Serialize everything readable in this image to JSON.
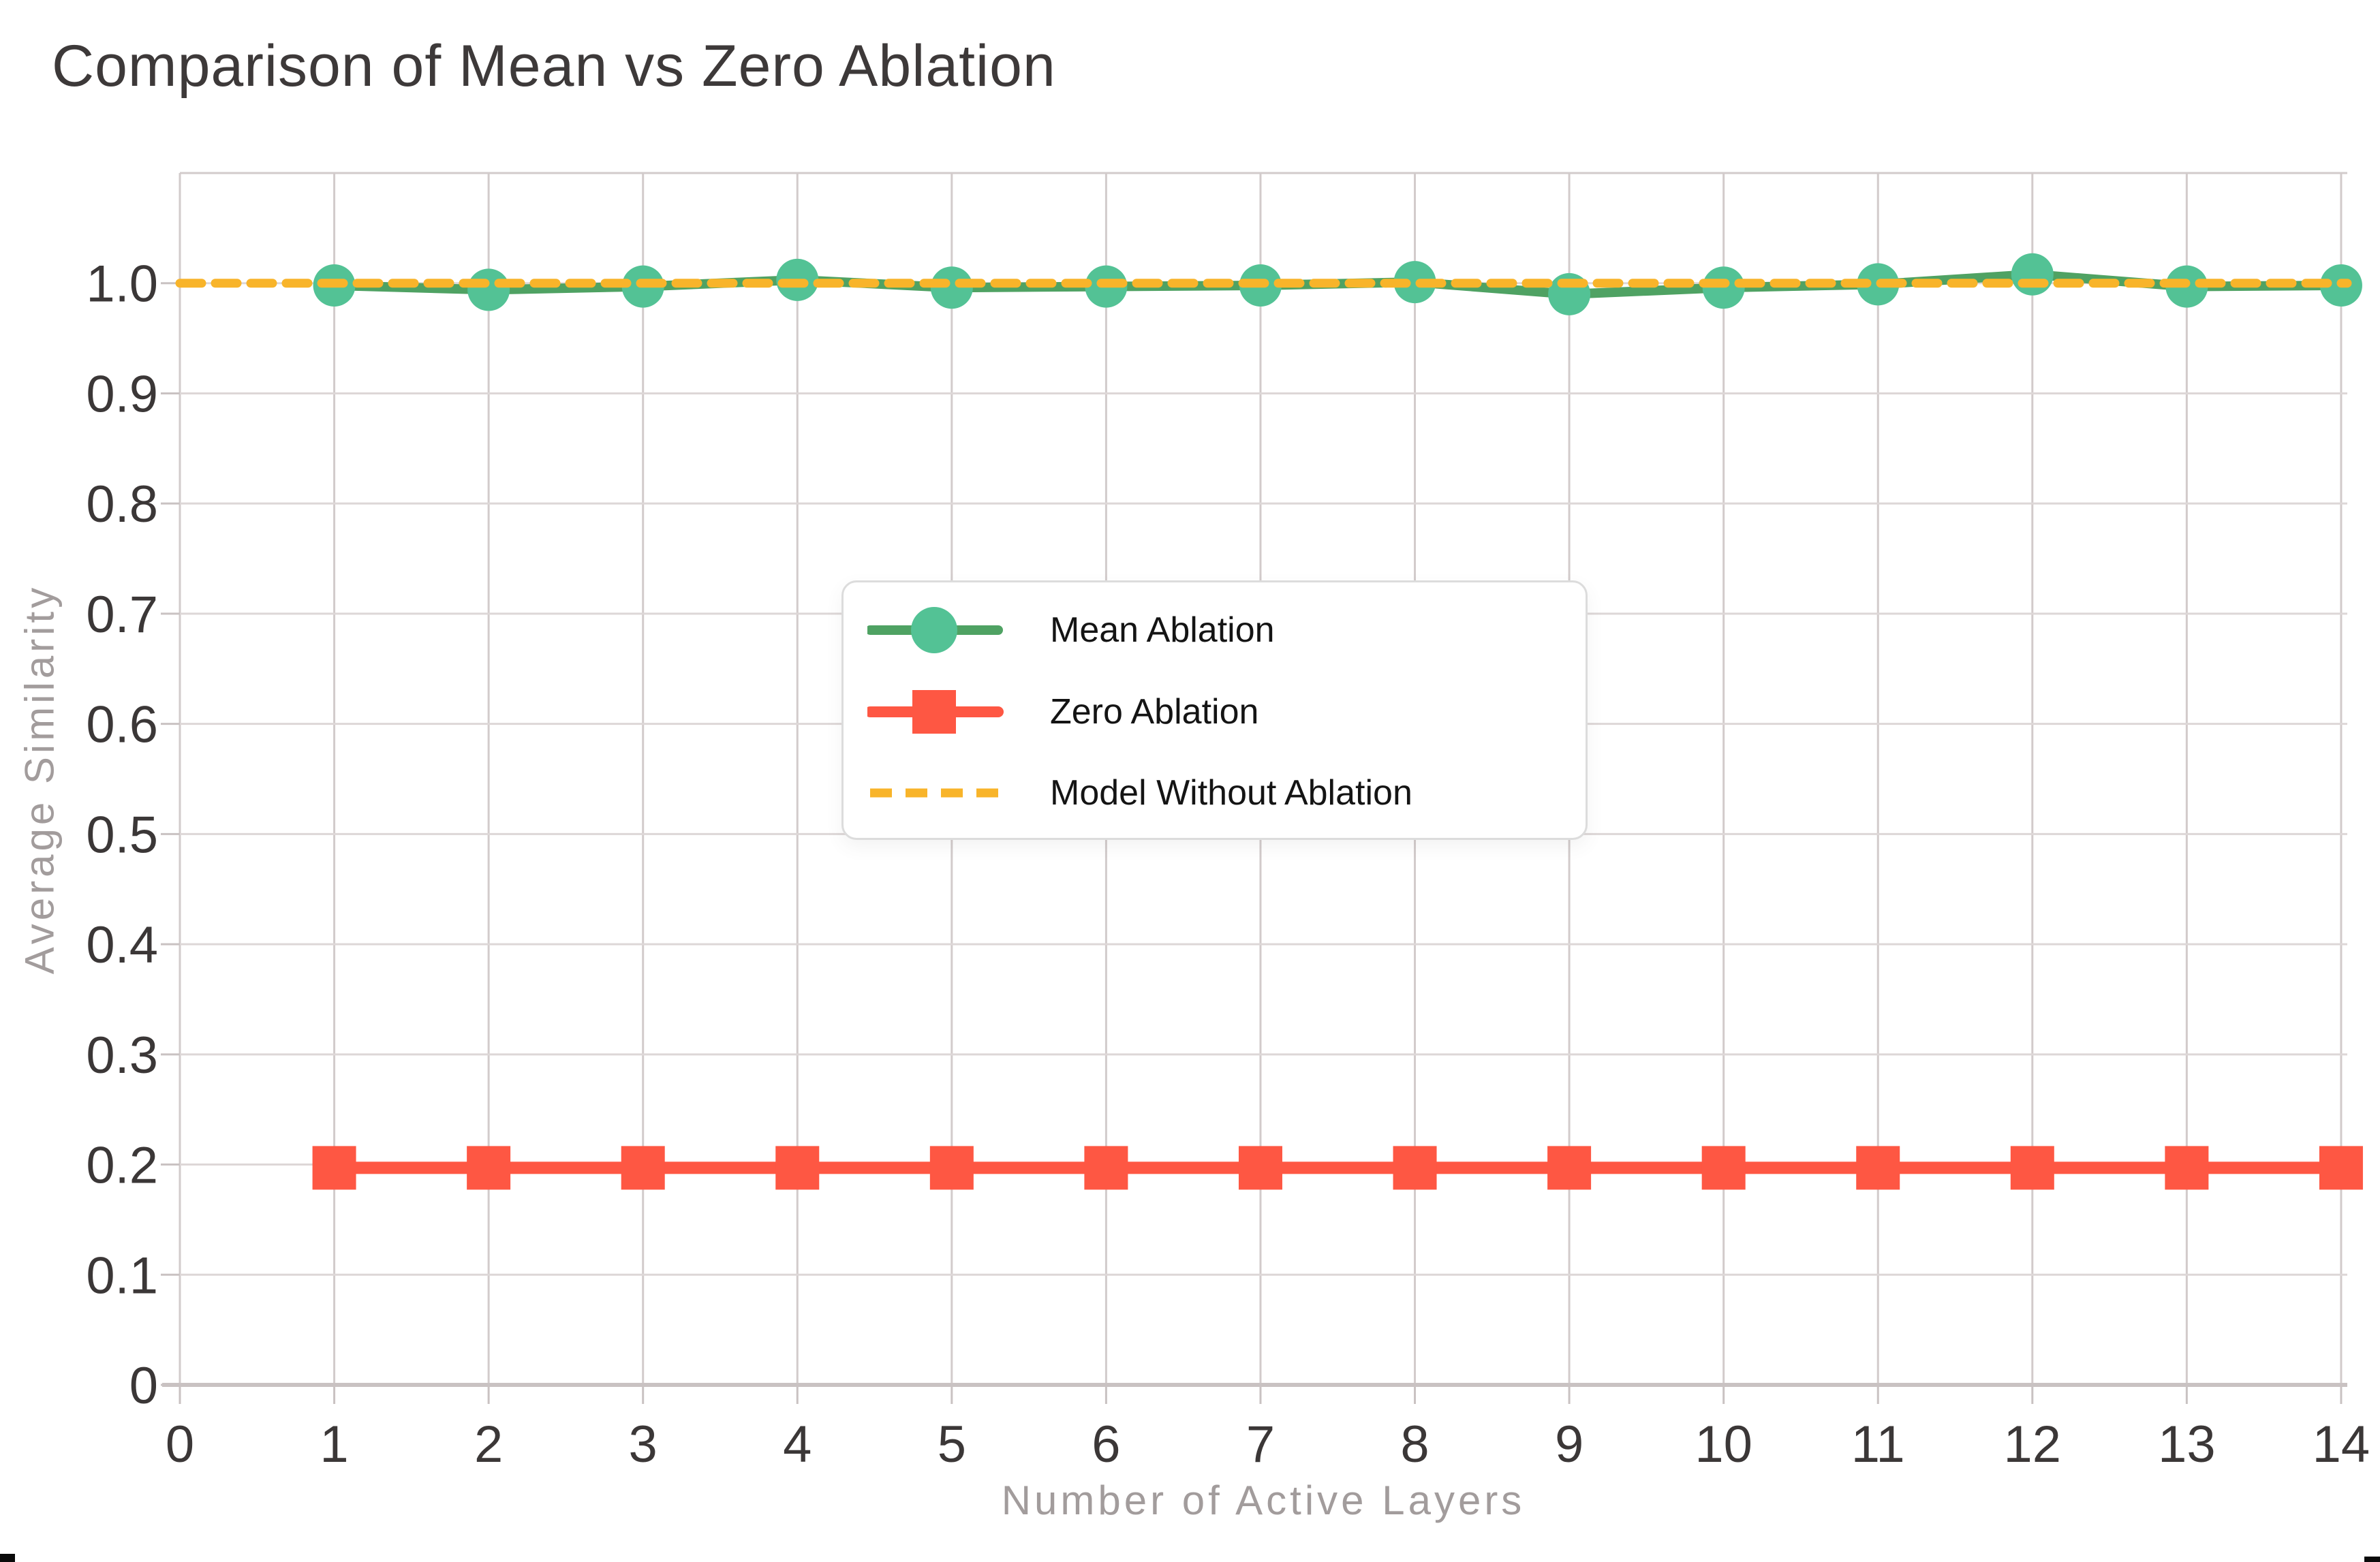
{
  "title": "Comparison of Mean vs Zero Ablation",
  "axes": {
    "x_title": "Number of Active Layers",
    "y_title": "Average Similarity"
  },
  "legend": {
    "items": [
      {
        "label": "Mean Ablation",
        "symbol": "line-with-circle-marker"
      },
      {
        "label": "Zero Ablation",
        "symbol": "line-with-square-marker"
      },
      {
        "label": "Model Without Ablation",
        "symbol": "dashed-line"
      }
    ]
  },
  "colors": {
    "page_bg": "#ffffff",
    "title": "#3d3939",
    "tick_label": "#3b3737",
    "axis_title": "#a29c9c",
    "grid_v": "#d2cbcb",
    "grid_h": "#ddd7d7",
    "tick": "#c9c2c2",
    "axis_spine": "#c9c2c2",
    "legend_border": "#dcdcdc",
    "legend_text": "#141414",
    "mean_line": "#4fa263",
    "mean_marker": "#53c295",
    "zero": "#fe5743",
    "baseline": "#f8b42a"
  },
  "chart_data": {
    "type": "line",
    "title": "Comparison of Mean vs Zero Ablation",
    "xlabel": "Number of Active Layers",
    "ylabel": "Average Similarity",
    "xlim": [
      0,
      14.04
    ],
    "ylim": [
      0,
      1.1
    ],
    "grid": true,
    "legend_position": "center",
    "x_ticks": {
      "values": [
        0,
        1,
        2,
        3,
        4,
        5,
        6,
        7,
        8,
        9,
        10,
        11,
        12,
        13,
        14
      ],
      "labels": [
        "0",
        "1",
        "2",
        "3",
        "4",
        "5",
        "6",
        "7",
        "8",
        "9",
        "10",
        "11",
        "12",
        "13",
        "14"
      ]
    },
    "y_ticks": {
      "values": [
        0,
        0.1,
        0.2,
        0.3,
        0.4,
        0.5,
        0.6,
        0.7,
        0.8,
        0.9,
        1.0
      ],
      "labels": [
        "0",
        "0.1",
        "0.2",
        "0.3",
        "0.4",
        "0.5",
        "0.6",
        "0.7",
        "0.8",
        "0.9",
        "1.0"
      ]
    },
    "series": [
      {
        "name": "Mean Ablation",
        "marker": "circle",
        "marker_size": 62,
        "line_width": 14,
        "line_color": "#4fa263",
        "marker_color": "#53c295",
        "x": [
          1,
          2,
          3,
          4,
          5,
          6,
          7,
          8,
          9,
          10,
          11,
          12,
          13,
          14
        ],
        "y": [
          0.998,
          0.994,
          0.997,
          1.003,
          0.996,
          0.997,
          0.998,
          1.001,
          0.99,
          0.996,
          0.999,
          1.008,
          0.997,
          0.998
        ]
      },
      {
        "name": "Zero Ablation",
        "marker": "square",
        "marker_size": 64,
        "line_width": 18,
        "line_color": "#fe5743",
        "marker_color": "#fe5743",
        "x": [
          1,
          2,
          3,
          4,
          5,
          6,
          7,
          8,
          9,
          10,
          11,
          12,
          13,
          14
        ],
        "y": [
          0.197,
          0.197,
          0.197,
          0.197,
          0.197,
          0.197,
          0.197,
          0.197,
          0.197,
          0.197,
          0.197,
          0.197,
          0.197,
          0.197
        ]
      },
      {
        "name": "Model Without Ablation",
        "marker": "none",
        "line_width": 13,
        "dash": "32 20",
        "line_color": "#f8b42a",
        "x": [
          0,
          14.04
        ],
        "y": [
          1.0,
          1.0
        ]
      }
    ]
  }
}
